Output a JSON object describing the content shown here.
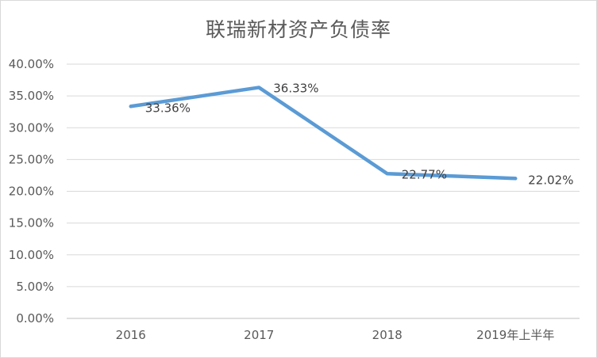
{
  "chart_data": {
    "type": "line",
    "title": "联瑞新材资产负债率",
    "categories": [
      "2016",
      "2017",
      "2018",
      "2019年上半年"
    ],
    "series": [
      {
        "values": [
          33.36,
          36.33,
          22.77,
          22.02
        ],
        "data_labels": [
          "33.36%",
          "36.33%",
          "22.77%",
          "22.02%"
        ],
        "color": "#5b9bd5"
      }
    ],
    "ylim": [
      0,
      40
    ],
    "yticks": [
      "0.00%",
      "5.00%",
      "10.00%",
      "15.00%",
      "20.00%",
      "25.00%",
      "30.00%",
      "35.00%",
      "40.00%"
    ],
    "grid": true,
    "legend": "none"
  }
}
